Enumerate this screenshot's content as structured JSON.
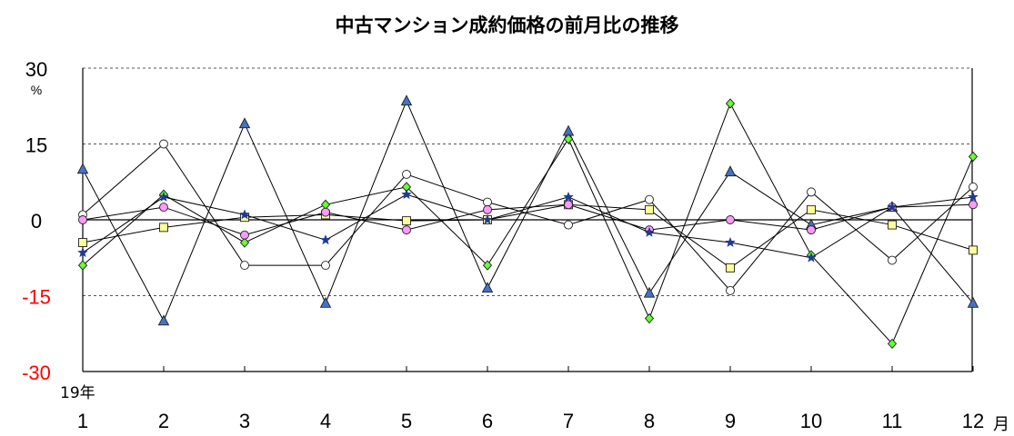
{
  "chart_data": {
    "type": "line",
    "title": "中古マンション成約価格の前月比の推移",
    "y_unit": "%",
    "year_label": "19年",
    "month_unit": "月",
    "x": [
      "1",
      "2",
      "3",
      "4",
      "5",
      "6",
      "7",
      "8",
      "9",
      "10",
      "11",
      "12"
    ],
    "ylim": [
      -30,
      30
    ],
    "yticks": [
      30,
      15,
      0,
      -15,
      -30
    ],
    "negative_tick_color": "#ff0000",
    "gridlines": [
      30,
      15,
      -15
    ],
    "series": [
      {
        "marker": "triangle",
        "fill": "#4472c4",
        "values": [
          10,
          -20,
          19,
          -16.5,
          23.5,
          -13.5,
          17.5,
          -14.5,
          9.5,
          -1,
          2.5,
          -16.5
        ]
      },
      {
        "marker": "circle",
        "fill": "#ffffff",
        "values": [
          1,
          15,
          -9,
          -9,
          9,
          3.5,
          -1,
          4,
          -14,
          5.5,
          -8,
          6.5
        ]
      },
      {
        "marker": "diamond",
        "fill": "#66ff33",
        "values": [
          -9,
          5,
          -4.5,
          3,
          6.5,
          -9,
          16,
          -19.5,
          23,
          -7,
          -24.5,
          12.5
        ]
      },
      {
        "marker": "square",
        "fill": "#ffff99",
        "values": [
          -4.5,
          -1.5,
          0.5,
          1,
          -0.2,
          0,
          3,
          2,
          -9.5,
          2,
          -1,
          -6
        ]
      },
      {
        "marker": "circle",
        "fill": "#ff99ff",
        "values": [
          0,
          2.5,
          -3,
          1.5,
          -2,
          2,
          3,
          -2,
          0,
          -2,
          2.5,
          3
        ]
      },
      {
        "marker": "star",
        "fill": "#1f3a93",
        "values": [
          -6.5,
          4.5,
          1,
          -4,
          5,
          0,
          4.5,
          -2.5,
          -4.5,
          -7.5,
          2.5,
          4.5
        ]
      }
    ]
  }
}
